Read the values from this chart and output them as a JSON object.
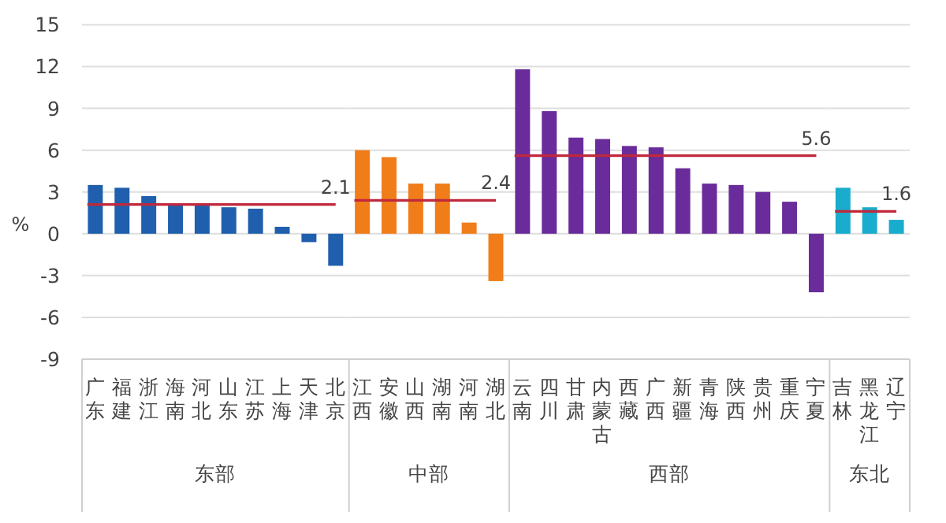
{
  "chart_data": [
    {
      "type": "bar",
      "xlabel": "东部",
      "ylabel": "%",
      "categories": [
        "广东",
        "福建",
        "浙江",
        "海南",
        "河北",
        "山东",
        "江苏",
        "上海",
        "天津",
        "北京"
      ],
      "values": [
        3.5,
        3.3,
        2.7,
        2.1,
        2.1,
        1.9,
        1.8,
        0.5,
        -0.6,
        -2.3
      ],
      "color": "#1f5fad",
      "ylim": [
        -9,
        15
      ],
      "yticks": [
        -9,
        -6,
        -3,
        0,
        3,
        6,
        9,
        12,
        15
      ],
      "grid": "y",
      "ref_lines": [
        {
          "axis": "y",
          "value": 2.1,
          "label": "2.1",
          "color": "#c0283c"
        }
      ]
    },
    {
      "type": "bar",
      "xlabel": "中部",
      "categories": [
        "江西",
        "安徽",
        "山西",
        "湖南",
        "河南",
        "湖北"
      ],
      "values": [
        6.0,
        5.5,
        3.6,
        3.6,
        0.8,
        -3.4
      ],
      "color": "#f07d1a",
      "ylim": [
        -9,
        15
      ],
      "yticks": [
        -9,
        -6,
        -3,
        0,
        3,
        6,
        9,
        12,
        15
      ],
      "grid": "y",
      "tick_labels": "x",
      "ref_lines": [
        {
          "axis": "y",
          "value": 2.4,
          "label": "2.4",
          "color": "#c0283c"
        }
      ]
    },
    {
      "type": "bar",
      "xlabel": "西部",
      "categories": [
        "云南",
        "四川",
        "甘肃",
        "内蒙古",
        "西藏",
        "广西",
        "新疆",
        "青海",
        "陕西",
        "贵州",
        "重庆",
        "宁夏"
      ],
      "values": [
        11.8,
        8.8,
        6.9,
        6.8,
        6.3,
        6.2,
        4.7,
        3.6,
        3.5,
        3.0,
        2.3,
        -4.2
      ],
      "color": "#6a2c9a",
      "ylim": [
        -9,
        15
      ],
      "yticks": [
        -9,
        -6,
        -3,
        0,
        3,
        6,
        9,
        12,
        15
      ],
      "grid": "y",
      "tick_labels": "x",
      "ref_lines": [
        {
          "axis": "y",
          "value": 5.6,
          "label": "5.6",
          "color": "#c0283c"
        }
      ]
    },
    {
      "type": "bar",
      "xlabel": "东北",
      "categories": [
        "吉林",
        "黑龙江",
        "辽宁"
      ],
      "values": [
        3.3,
        1.9,
        1.0
      ],
      "color": "#1aaccc",
      "ylim": [
        -9,
        15
      ],
      "yticks": [
        -9,
        -6,
        -3,
        0,
        3,
        6,
        9,
        12,
        15
      ],
      "grid": "y",
      "tick_labels": "x",
      "ref_lines": [
        {
          "axis": "y",
          "value": 1.6,
          "label": "1.6",
          "color": "#c0283c"
        }
      ]
    }
  ]
}
